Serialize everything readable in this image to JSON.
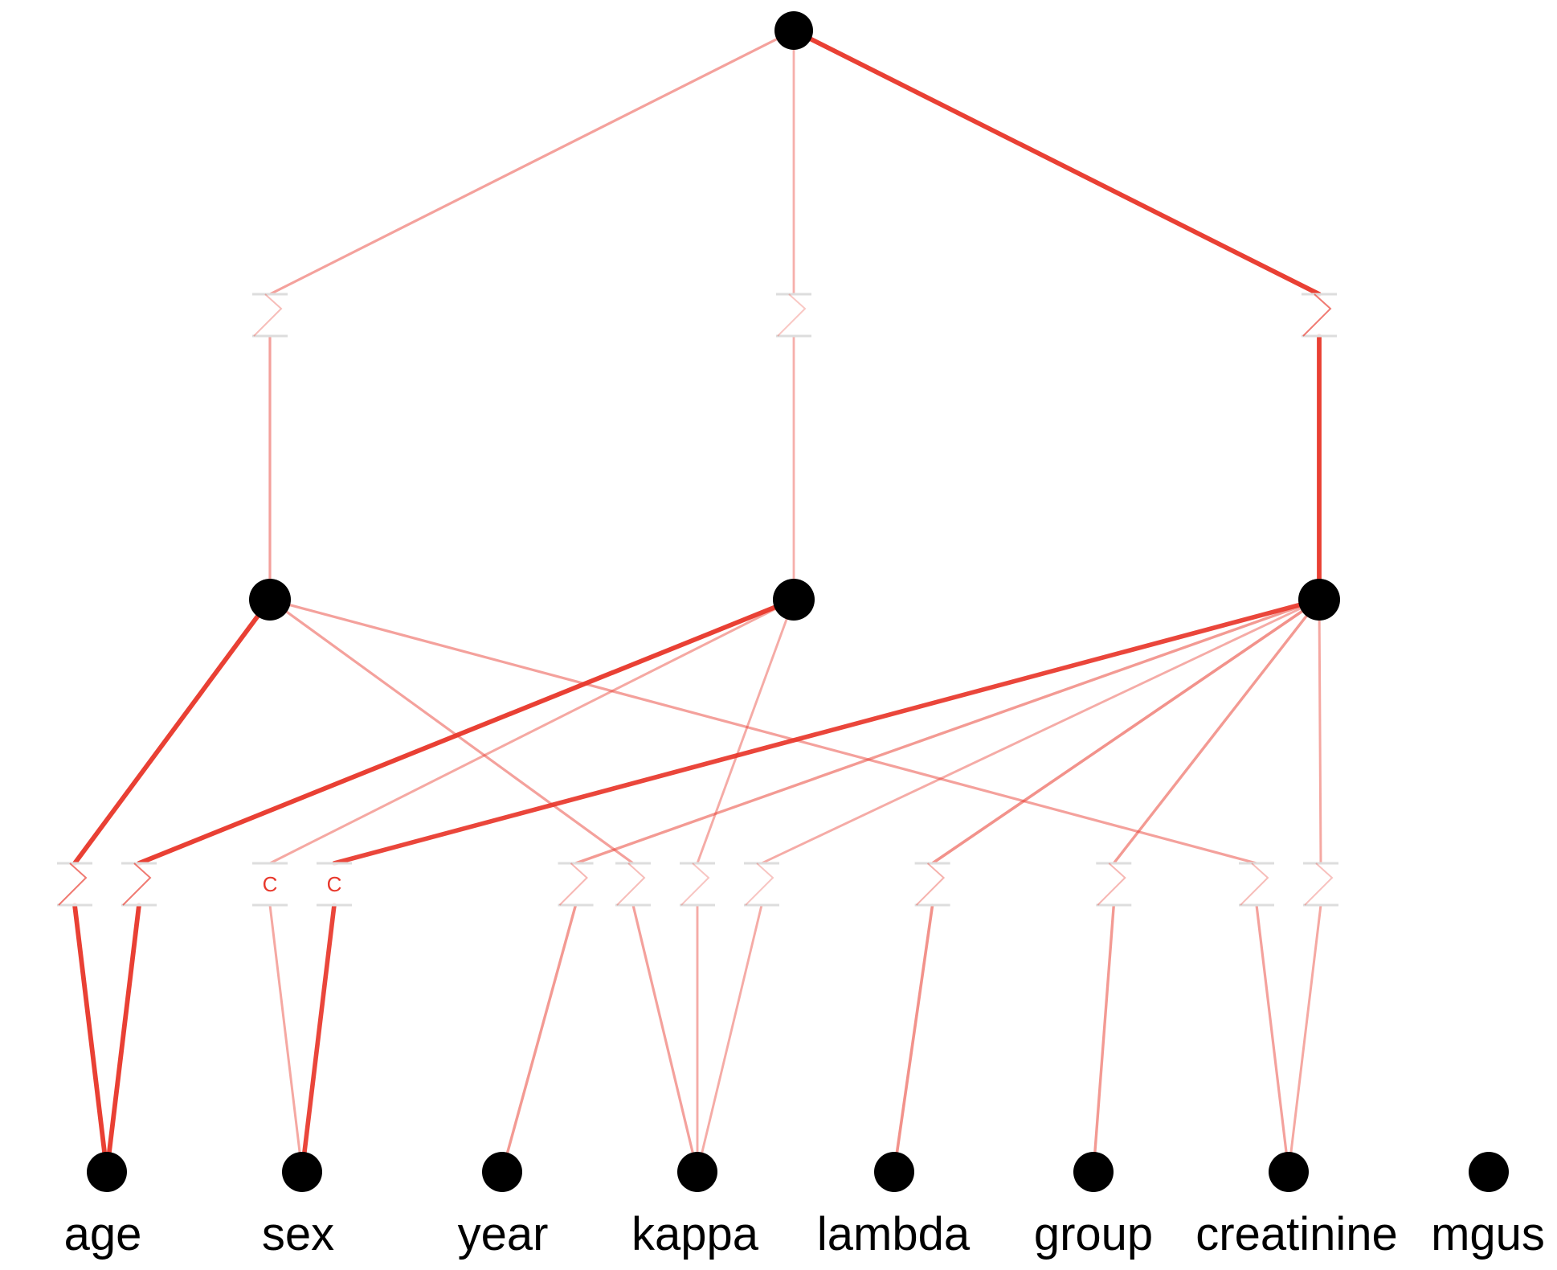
{
  "colors": {
    "node": "#000000",
    "edge": "#e8382c",
    "label": "#000000"
  },
  "input_labels": [
    "age",
    "sex",
    "year",
    "kappa",
    "lambda",
    "group",
    "creatinine",
    "mgus"
  ],
  "categorical_marker": "C",
  "diagram": {
    "root": {
      "id": "root"
    },
    "hidden_nodes": [
      {
        "id": "h1"
      },
      {
        "id": "h2"
      },
      {
        "id": "h3"
      }
    ],
    "input_nodes": [
      {
        "id": "age"
      },
      {
        "id": "sex"
      },
      {
        "id": "year"
      },
      {
        "id": "kappa"
      },
      {
        "id": "lambda"
      },
      {
        "id": "group"
      },
      {
        "id": "creatinine"
      },
      {
        "id": "mgus"
      }
    ],
    "edges": [
      {
        "from": "root",
        "to": "h1",
        "weight": 0.3
      },
      {
        "from": "root",
        "to": "h2",
        "weight": 0.2
      },
      {
        "from": "root",
        "to": "h3",
        "weight": 0.95
      },
      {
        "from": "h1",
        "to": "age",
        "weight": 0.95
      },
      {
        "from": "h2",
        "to": "age",
        "weight": 0.95
      },
      {
        "from": "h2",
        "to": "sex",
        "weight": 0.25,
        "categorical": true
      },
      {
        "from": "h3",
        "to": "sex",
        "weight": 0.9,
        "categorical": true
      },
      {
        "from": "h3",
        "to": "year",
        "weight": 0.35
      },
      {
        "from": "h1",
        "to": "kappa",
        "weight": 0.3
      },
      {
        "from": "h2",
        "to": "kappa",
        "weight": 0.22
      },
      {
        "from": "h3",
        "to": "kappa",
        "weight": 0.22
      },
      {
        "from": "h3",
        "to": "lambda",
        "weight": 0.4
      },
      {
        "from": "h3",
        "to": "group",
        "weight": 0.35
      },
      {
        "from": "h1",
        "to": "creatinine",
        "weight": 0.3
      },
      {
        "from": "h3",
        "to": "creatinine",
        "weight": 0.25
      }
    ]
  }
}
